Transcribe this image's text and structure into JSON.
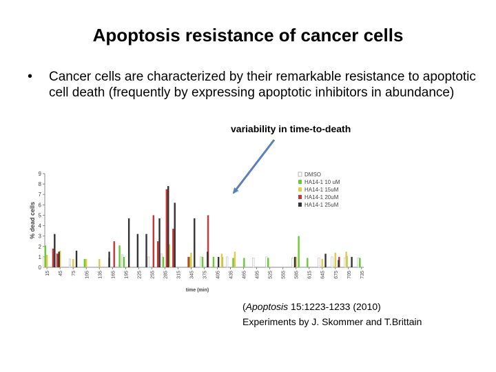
{
  "slide": {
    "title": "Apoptosis resistance of cancer cells",
    "bullet": "Cancer cells are characterized by their remarkable resistance to apoptotic cell death (frequently by expressing apoptotic inhibitors in abundance)",
    "annotation": "variability in time-to-death",
    "citation": {
      "journal": "Apoptosis",
      "ref": " 15:1223-1233 (2010)",
      "line2": "Experiments by J. Skommer and T.Brittain"
    }
  },
  "chart_data": {
    "type": "bar",
    "xlabel": "time (min)",
    "ylabel": "% dead cells",
    "ylim": [
      0,
      9
    ],
    "yticks": [
      0,
      1,
      2,
      3,
      4,
      5,
      6,
      7,
      8,
      9
    ],
    "xticks": [
      15,
      45,
      75,
      105,
      135,
      165,
      195,
      225,
      255,
      285,
      315,
      345,
      375,
      405,
      435,
      465,
      495,
      525,
      555,
      585,
      615,
      645,
      675,
      705,
      735
    ],
    "legend_position": "top-right",
    "series": [
      {
        "name": "DMSO",
        "color": "#ffffff",
        "points": [
          [
            15,
            1.0
          ],
          [
            45,
            1.3
          ],
          [
            75,
            0.8
          ],
          [
            165,
            0.9
          ],
          [
            195,
            1.2
          ],
          [
            255,
            1.0
          ],
          [
            285,
            1.3
          ],
          [
            375,
            1.0
          ],
          [
            435,
            1.0
          ],
          [
            495,
            0.9
          ],
          [
            525,
            1.0
          ],
          [
            585,
            0.9
          ],
          [
            645,
            0.9
          ],
          [
            675,
            1.0
          ],
          [
            705,
            0.9
          ],
          [
            735,
            0.9
          ]
        ]
      },
      {
        "name": "HA14-1 10 uM",
        "color": "#66cc33",
        "points": [
          [
            15,
            2.1
          ],
          [
            45,
            0.9
          ],
          [
            105,
            0.8
          ],
          [
            185,
            2.1
          ],
          [
            195,
            1.0
          ],
          [
            285,
            1.0
          ],
          [
            345,
            1.0
          ],
          [
            375,
            1.0
          ],
          [
            400,
            1.0
          ],
          [
            420,
            1.0
          ],
          [
            445,
            0.9
          ],
          [
            470,
            0.9
          ],
          [
            525,
            0.9
          ],
          [
            595,
            3.0
          ],
          [
            615,
            0.9
          ],
          [
            705,
            1.1
          ],
          [
            735,
            0.9
          ]
        ]
      },
      {
        "name": "HA14-1 15uM",
        "color": "#e6c84a",
        "points": [
          [
            15,
            1.2
          ],
          [
            45,
            1.6
          ],
          [
            75,
            0.8
          ],
          [
            105,
            0.8
          ],
          [
            135,
            0.8
          ],
          [
            295,
            2.2
          ],
          [
            345,
            1.4
          ],
          [
            415,
            1.3
          ],
          [
            445,
            1.5
          ],
          [
            585,
            1.0
          ],
          [
            645,
            0.8
          ],
          [
            675,
            1.4
          ],
          [
            700,
            1.5
          ]
        ]
      },
      {
        "name": "HA14-1 20uM",
        "color": "#cc3333",
        "points": [
          [
            25,
            1.8
          ],
          [
            35,
            1.3
          ],
          [
            165,
            2.5
          ],
          [
            255,
            5.0
          ],
          [
            265,
            2.5
          ],
          [
            285,
            7.5
          ],
          [
            300,
            3.7
          ],
          [
            335,
            1.0
          ],
          [
            380,
            5.0
          ],
          [
            680,
            1.0
          ]
        ]
      },
      {
        "name": "HA14-1 25uM",
        "color": "#333333",
        "points": [
          [
            25,
            3.2
          ],
          [
            35,
            1.5
          ],
          [
            75,
            1.6
          ],
          [
            150,
            1.5
          ],
          [
            195,
            4.7
          ],
          [
            215,
            3.2
          ],
          [
            235,
            3.2
          ],
          [
            265,
            4.7
          ],
          [
            285,
            7.8
          ],
          [
            300,
            6.2
          ],
          [
            345,
            4.7
          ],
          [
            375,
            1.5
          ],
          [
            400,
            1.0
          ],
          [
            575,
            1.0
          ],
          [
            645,
            1.3
          ],
          [
            675,
            0.7
          ],
          [
            705,
            1.0
          ]
        ]
      }
    ]
  }
}
